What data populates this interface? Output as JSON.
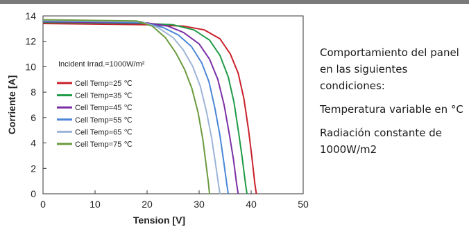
{
  "chart_data": {
    "type": "line",
    "xlabel": "Tension [V]",
    "ylabel": "Corriente [A]",
    "xlim": [
      0,
      50
    ],
    "ylim": [
      0,
      14
    ],
    "x_ticks": [
      "0",
      "10",
      "20",
      "30",
      "40",
      "50"
    ],
    "y_ticks": [
      "0",
      "2",
      "4",
      "6",
      "8",
      "10",
      "12",
      "14"
    ],
    "legend_title": "Incident Irrad.=1000W/m²",
    "legend_placement": "center-left",
    "grid": false,
    "series": [
      {
        "name": "Cell Temp=25 ℃",
        "color": "#c8202a",
        "x": [
          0,
          20,
          27,
          31,
          34,
          36,
          37.5,
          38.6,
          39.5,
          40.1,
          40.7,
          41.0
        ],
        "y": [
          13.4,
          13.3,
          13.2,
          12.9,
          12.2,
          11.0,
          9.5,
          7.5,
          5.0,
          3.0,
          0.8,
          0
        ]
      },
      {
        "name": "Cell Temp=35 ℃",
        "color": "#1f9a45",
        "x": [
          0,
          20,
          25,
          29,
          32,
          34,
          35.6,
          36.7,
          37.6,
          38.3,
          38.9,
          39.2
        ],
        "y": [
          13.5,
          13.4,
          13.3,
          12.9,
          12.1,
          10.9,
          9.2,
          7.2,
          4.8,
          2.8,
          0.8,
          0
        ]
      },
      {
        "name": "Cell Temp=45 ℃",
        "color": "#7a2fa6",
        "x": [
          0,
          20,
          24,
          27,
          30,
          32,
          33.6,
          34.8,
          35.8,
          36.6,
          37.2,
          37.5
        ],
        "y": [
          13.55,
          13.45,
          13.2,
          12.7,
          11.8,
          10.6,
          9.0,
          7.0,
          4.7,
          2.7,
          0.8,
          0
        ]
      },
      {
        "name": "Cell Temp=55 ℃",
        "color": "#4a86d6",
        "x": [
          0,
          19,
          23,
          26,
          28.5,
          30.5,
          31.9,
          33.0,
          34.0,
          34.7,
          35.3,
          35.6
        ],
        "y": [
          13.6,
          13.5,
          13.1,
          12.5,
          11.6,
          10.3,
          8.8,
          6.8,
          4.6,
          2.6,
          0.8,
          0
        ]
      },
      {
        "name": "Cell Temp=65 ℃",
        "color": "#9db4d8",
        "x": [
          0,
          19,
          22,
          25,
          27,
          28.8,
          30.2,
          31.4,
          32.4,
          33.1,
          33.7,
          34.0
        ],
        "y": [
          13.65,
          13.55,
          13.1,
          12.3,
          11.3,
          10.0,
          8.5,
          6.5,
          4.4,
          2.5,
          0.8,
          0
        ]
      },
      {
        "name": "Cell Temp=75 ℃",
        "color": "#6b9a3c",
        "x": [
          0,
          18,
          21,
          23.5,
          25.5,
          27.2,
          28.6,
          29.8,
          30.7,
          31.3,
          31.8,
          32.0
        ],
        "y": [
          13.7,
          13.6,
          13.2,
          12.3,
          11.1,
          9.8,
          8.3,
          6.4,
          4.3,
          2.4,
          0.8,
          0
        ]
      }
    ]
  },
  "side_text": {
    "p1": "Comportamiento del panel en las siguientes condiciones:",
    "p2_bold": "Temperatura variable",
    "p2_rest": " en °C",
    "p3_bold": "Radiación constante",
    "p3_rest": " de 1000W/m2"
  }
}
